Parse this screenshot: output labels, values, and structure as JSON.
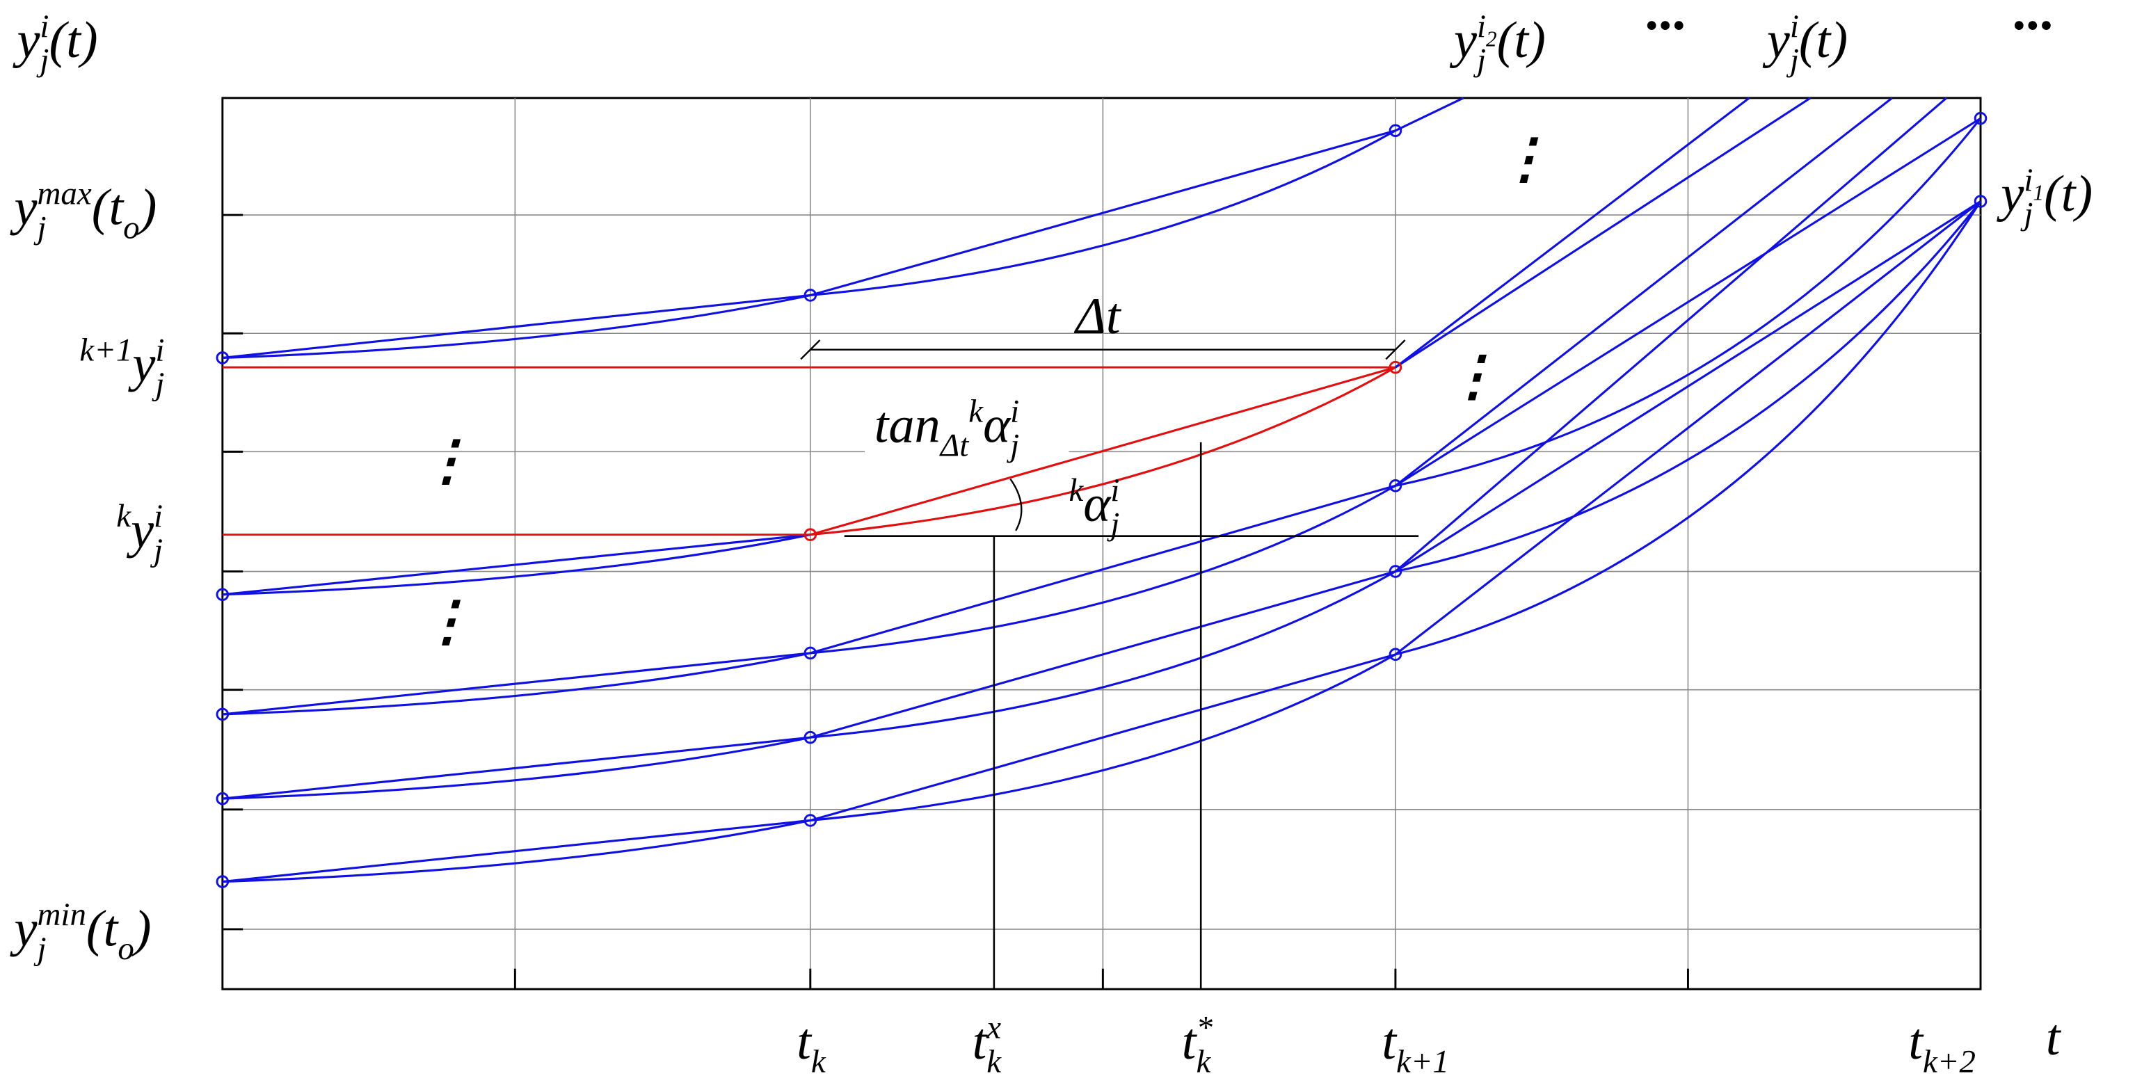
{
  "labels": {
    "y_axis": [
      {
        "text": "y",
        "role": "base"
      },
      {
        "text": "i",
        "role": "sup"
      },
      {
        "text": "j",
        "role": "sub"
      },
      {
        "text": "(t)",
        "role": "base"
      }
    ],
    "y_i2": [
      {
        "text": "y",
        "role": "base"
      },
      {
        "text": "i",
        "role": "sup"
      },
      {
        "text": "2",
        "role": "supsub"
      },
      {
        "text": "j",
        "role": "sub"
      },
      {
        "text": "(t)",
        "role": "base"
      }
    ],
    "dots_top_1": [
      {
        "text": "···",
        "role": "dots"
      }
    ],
    "y_i_top": [
      {
        "text": "y",
        "role": "base"
      },
      {
        "text": "i",
        "role": "sup"
      },
      {
        "text": "j",
        "role": "sub"
      },
      {
        "text": "(t)",
        "role": "base"
      }
    ],
    "dots_top_2": [
      {
        "text": "···",
        "role": "dots"
      }
    ],
    "y_max": [
      {
        "text": "y",
        "role": "base"
      },
      {
        "text": "max",
        "role": "sup"
      },
      {
        "text": "j",
        "role": "sub"
      },
      {
        "text": "(t",
        "role": "base"
      },
      {
        "text": "o",
        "role": "sub"
      },
      {
        "text": ")",
        "role": "base"
      }
    ],
    "y_i1": [
      {
        "text": "y",
        "role": "base"
      },
      {
        "text": "i",
        "role": "sup"
      },
      {
        "text": "1",
        "role": "supsub"
      },
      {
        "text": "j",
        "role": "sub"
      },
      {
        "text": "(t)",
        "role": "base"
      }
    ],
    "k1_y": [
      {
        "text": "k+1",
        "role": "sup"
      },
      {
        "text": "y",
        "role": "base"
      },
      {
        "text": "i",
        "role": "sup"
      },
      {
        "text": "j",
        "role": "sub"
      }
    ],
    "k_y": [
      {
        "text": "k",
        "role": "sup"
      },
      {
        "text": "y",
        "role": "base"
      },
      {
        "text": "i",
        "role": "sup"
      },
      {
        "text": "j",
        "role": "sub"
      }
    ],
    "y_min": [
      {
        "text": "y",
        "role": "base"
      },
      {
        "text": "min",
        "role": "sup"
      },
      {
        "text": "j",
        "role": "sub"
      },
      {
        "text": "(t",
        "role": "base"
      },
      {
        "text": "o",
        "role": "sub"
      },
      {
        "text": ")",
        "role": "base"
      }
    ],
    "delta_t": [
      {
        "text": "Δt",
        "role": "base"
      }
    ],
    "tan_alpha": [
      {
        "text": "tan",
        "role": "base"
      },
      {
        "text": "Δt",
        "role": "sub"
      },
      {
        "text": "k",
        "role": "sup"
      },
      {
        "text": "α",
        "role": "base"
      },
      {
        "text": "i",
        "role": "sup"
      },
      {
        "text": "j",
        "role": "sub"
      }
    ],
    "alpha": [
      {
        "text": "k",
        "role": "sup"
      },
      {
        "text": "α",
        "role": "base"
      },
      {
        "text": "i",
        "role": "sup"
      },
      {
        "text": "j",
        "role": "sub"
      }
    ],
    "vdots_1": [
      {
        "text": "⋮",
        "role": "vdots"
      }
    ],
    "vdots_2": [
      {
        "text": "⋮",
        "role": "vdots"
      }
    ],
    "vdots_3": [
      {
        "text": "⋮",
        "role": "vdots"
      }
    ],
    "vdots_4": [
      {
        "text": "⋮",
        "role": "vdots"
      }
    ],
    "t_k": [
      {
        "text": "t",
        "role": "base"
      },
      {
        "text": "k",
        "role": "sub"
      }
    ],
    "t_kx": [
      {
        "text": "t",
        "role": "base"
      },
      {
        "text": "x",
        "role": "sup"
      },
      {
        "text": "k",
        "role": "sub"
      }
    ],
    "t_kstar": [
      {
        "text": "t",
        "role": "base"
      },
      {
        "text": "*",
        "role": "sup"
      },
      {
        "text": "k",
        "role": "sub"
      }
    ],
    "t_k1": [
      {
        "text": "t",
        "role": "base"
      },
      {
        "text": "k+1",
        "role": "sub"
      }
    ],
    "t_k2": [
      {
        "text": "t",
        "role": "base"
      },
      {
        "text": "k+2",
        "role": "sub"
      }
    ],
    "t_axis": [
      {
        "text": "t",
        "role": "base"
      }
    ]
  }
}
